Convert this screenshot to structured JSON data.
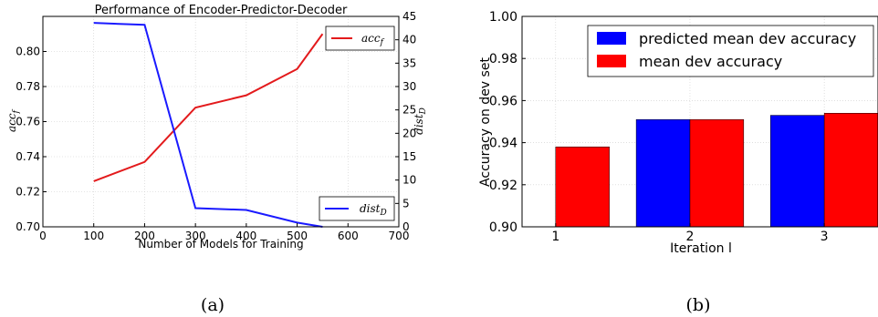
{
  "chart_data": [
    {
      "type": "line",
      "title": "Performance of Encoder-Predictor-Decoder",
      "xlabel": "Number of Models for Training",
      "ylabel": "acc_f",
      "ylabel2": "dist_D",
      "xlim": [
        0,
        700
      ],
      "ylim": [
        0.7,
        0.82
      ],
      "y2lim": [
        0,
        45
      ],
      "xticks": [
        "0",
        "100",
        "200",
        "300",
        "400",
        "500",
        "600",
        "700"
      ],
      "yticks": [
        "0.70",
        "0.72",
        "0.74",
        "0.76",
        "0.78",
        "0.80"
      ],
      "y2ticks": [
        "0",
        "5",
        "10",
        "15",
        "20",
        "25",
        "30",
        "35",
        "40",
        "45"
      ],
      "grid": true,
      "series": [
        {
          "name": "acc_f",
          "axis": "left",
          "color": "#e31a1c",
          "x": [
            100,
            200,
            300,
            400,
            500,
            550
          ],
          "y": [
            0.726,
            0.737,
            0.768,
            0.775,
            0.79,
            0.81
          ]
        },
        {
          "name": "dist_D",
          "axis": "right",
          "color": "#1a1aff",
          "x": [
            100,
            200,
            300,
            400,
            500,
            550
          ],
          "y": [
            43.6,
            43.2,
            4.0,
            3.6,
            0.9,
            0.0
          ]
        }
      ],
      "legend": [
        {
          "label": "acc",
          "sub": "f",
          "placement": "top-right"
        },
        {
          "label": "dist",
          "sub": "D",
          "placement": "bottom-right"
        }
      ],
      "caption": "(a)"
    },
    {
      "type": "bar",
      "title": "",
      "xlabel": "Iteration l",
      "ylabel": "Accuracy on dev set",
      "xlim": [
        0.75,
        3.4
      ],
      "ylim": [
        0.9,
        1.0
      ],
      "xticks": [
        "1",
        "2",
        "3"
      ],
      "yticks": [
        "0.90",
        "0.92",
        "0.94",
        "0.96",
        "0.98",
        "1.00"
      ],
      "grid": true,
      "categories": [
        "1",
        "2",
        "3"
      ],
      "series": [
        {
          "name": "predicted mean dev accuracy",
          "color": "#0000ff",
          "values": [
            null,
            0.951,
            0.953
          ]
        },
        {
          "name": "mean dev accuracy",
          "color": "#ff0000",
          "values": [
            0.938,
            0.951,
            0.954
          ]
        }
      ],
      "legend_placement": "top-right",
      "caption": "(b)"
    }
  ]
}
